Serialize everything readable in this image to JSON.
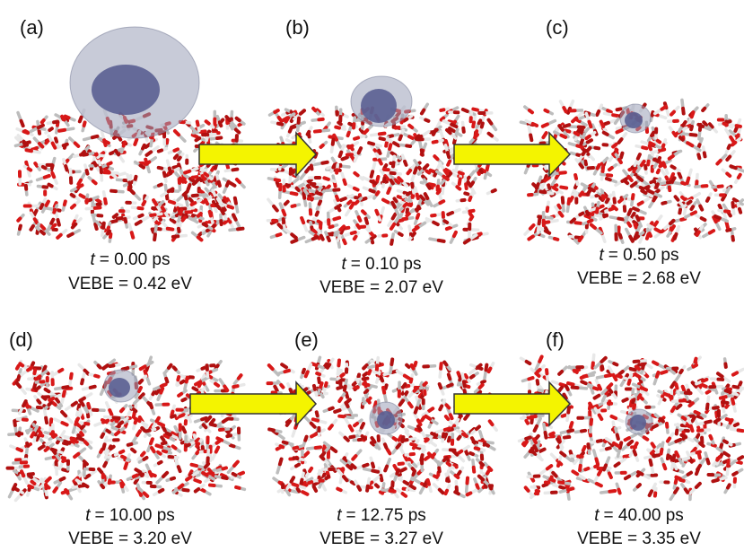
{
  "panels": [
    {
      "label": "(a)",
      "time_var": "t",
      "time": "= 0.00 ps",
      "vebe": "VEBE = 0.42 eV"
    },
    {
      "label": "(b)",
      "time_var": "t",
      "time": "= 0.10 ps",
      "vebe": "VEBE = 2.07 eV"
    },
    {
      "label": "(c)",
      "time_var": "t",
      "time": "= 0.50 ps",
      "vebe": "VEBE = 2.68 eV"
    },
    {
      "label": "(d)",
      "time_var": "t",
      "time": "= 10.00 ps",
      "vebe": "VEBE = 3.20 eV"
    },
    {
      "label": "(e)",
      "time_var": "t",
      "time": "= 12.75 ps",
      "vebe": "VEBE = 3.27 eV"
    },
    {
      "label": "(f)",
      "time_var": "t",
      "time": "= 40.00 ps",
      "vebe": "VEBE = 3.35 eV"
    }
  ]
}
